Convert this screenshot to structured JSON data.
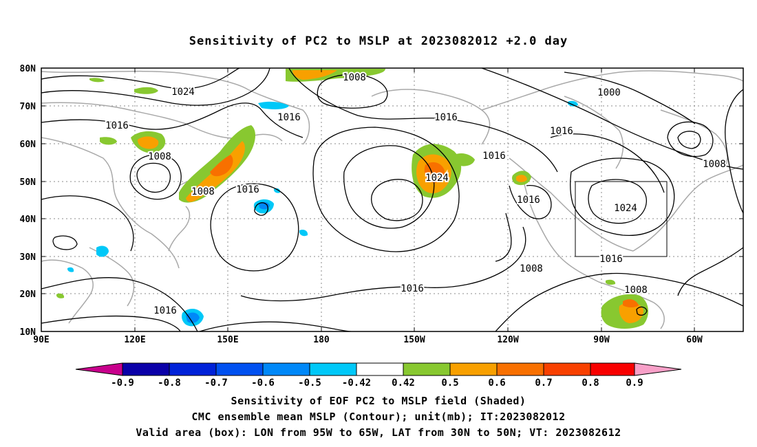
{
  "title": "Sensitivity of PC2 to MSLP at 2023082012 +2.0 day",
  "lat_ticks": [
    "80N",
    "70N",
    "60N",
    "50N",
    "40N",
    "30N",
    "20N",
    "10N"
  ],
  "lon_ticks": [
    "90E",
    "120E",
    "150E",
    "180",
    "150W",
    "120W",
    "90W",
    "60W"
  ],
  "contour_labels": [
    "1024",
    "1008",
    "1000",
    "1016",
    "1016",
    "1016",
    "1008",
    "1016",
    "1008",
    "1016",
    "1016",
    "1024",
    "1016",
    "1016",
    "1024",
    "1016",
    "1008",
    "1008",
    "1016",
    "1008"
  ],
  "colorbar": {
    "labels": [
      "-0.9",
      "-0.8",
      "-0.7",
      "-0.6",
      "-0.5",
      "-0.42",
      "0.42",
      "0.5",
      "0.6",
      "0.7",
      "0.8",
      "0.9"
    ],
    "colors": [
      "#0a00a8",
      "#0022d8",
      "#0050f0",
      "#0088f8",
      "#00c8f8",
      "#ffffff",
      "#88c830",
      "#f8a000",
      "#f87000",
      "#f84000",
      "#f80000"
    ],
    "under_color": "#c8008c",
    "over_color": "#f8a0c8"
  },
  "captions": {
    "line1": "Sensitivity of EOF PC2 to MSLP field (Shaded)",
    "line2": "CMC ensemble mean MSLP (Contour); unit(mb); IT:2023082012",
    "line3": "Valid area (box): LON from 95W to 65W, LAT from 30N to 50N; VT: 2023082612"
  },
  "valid_box": {
    "lon_from": "95W",
    "lon_to": "65W",
    "lat_from": "30N",
    "lat_to": "50N"
  }
}
